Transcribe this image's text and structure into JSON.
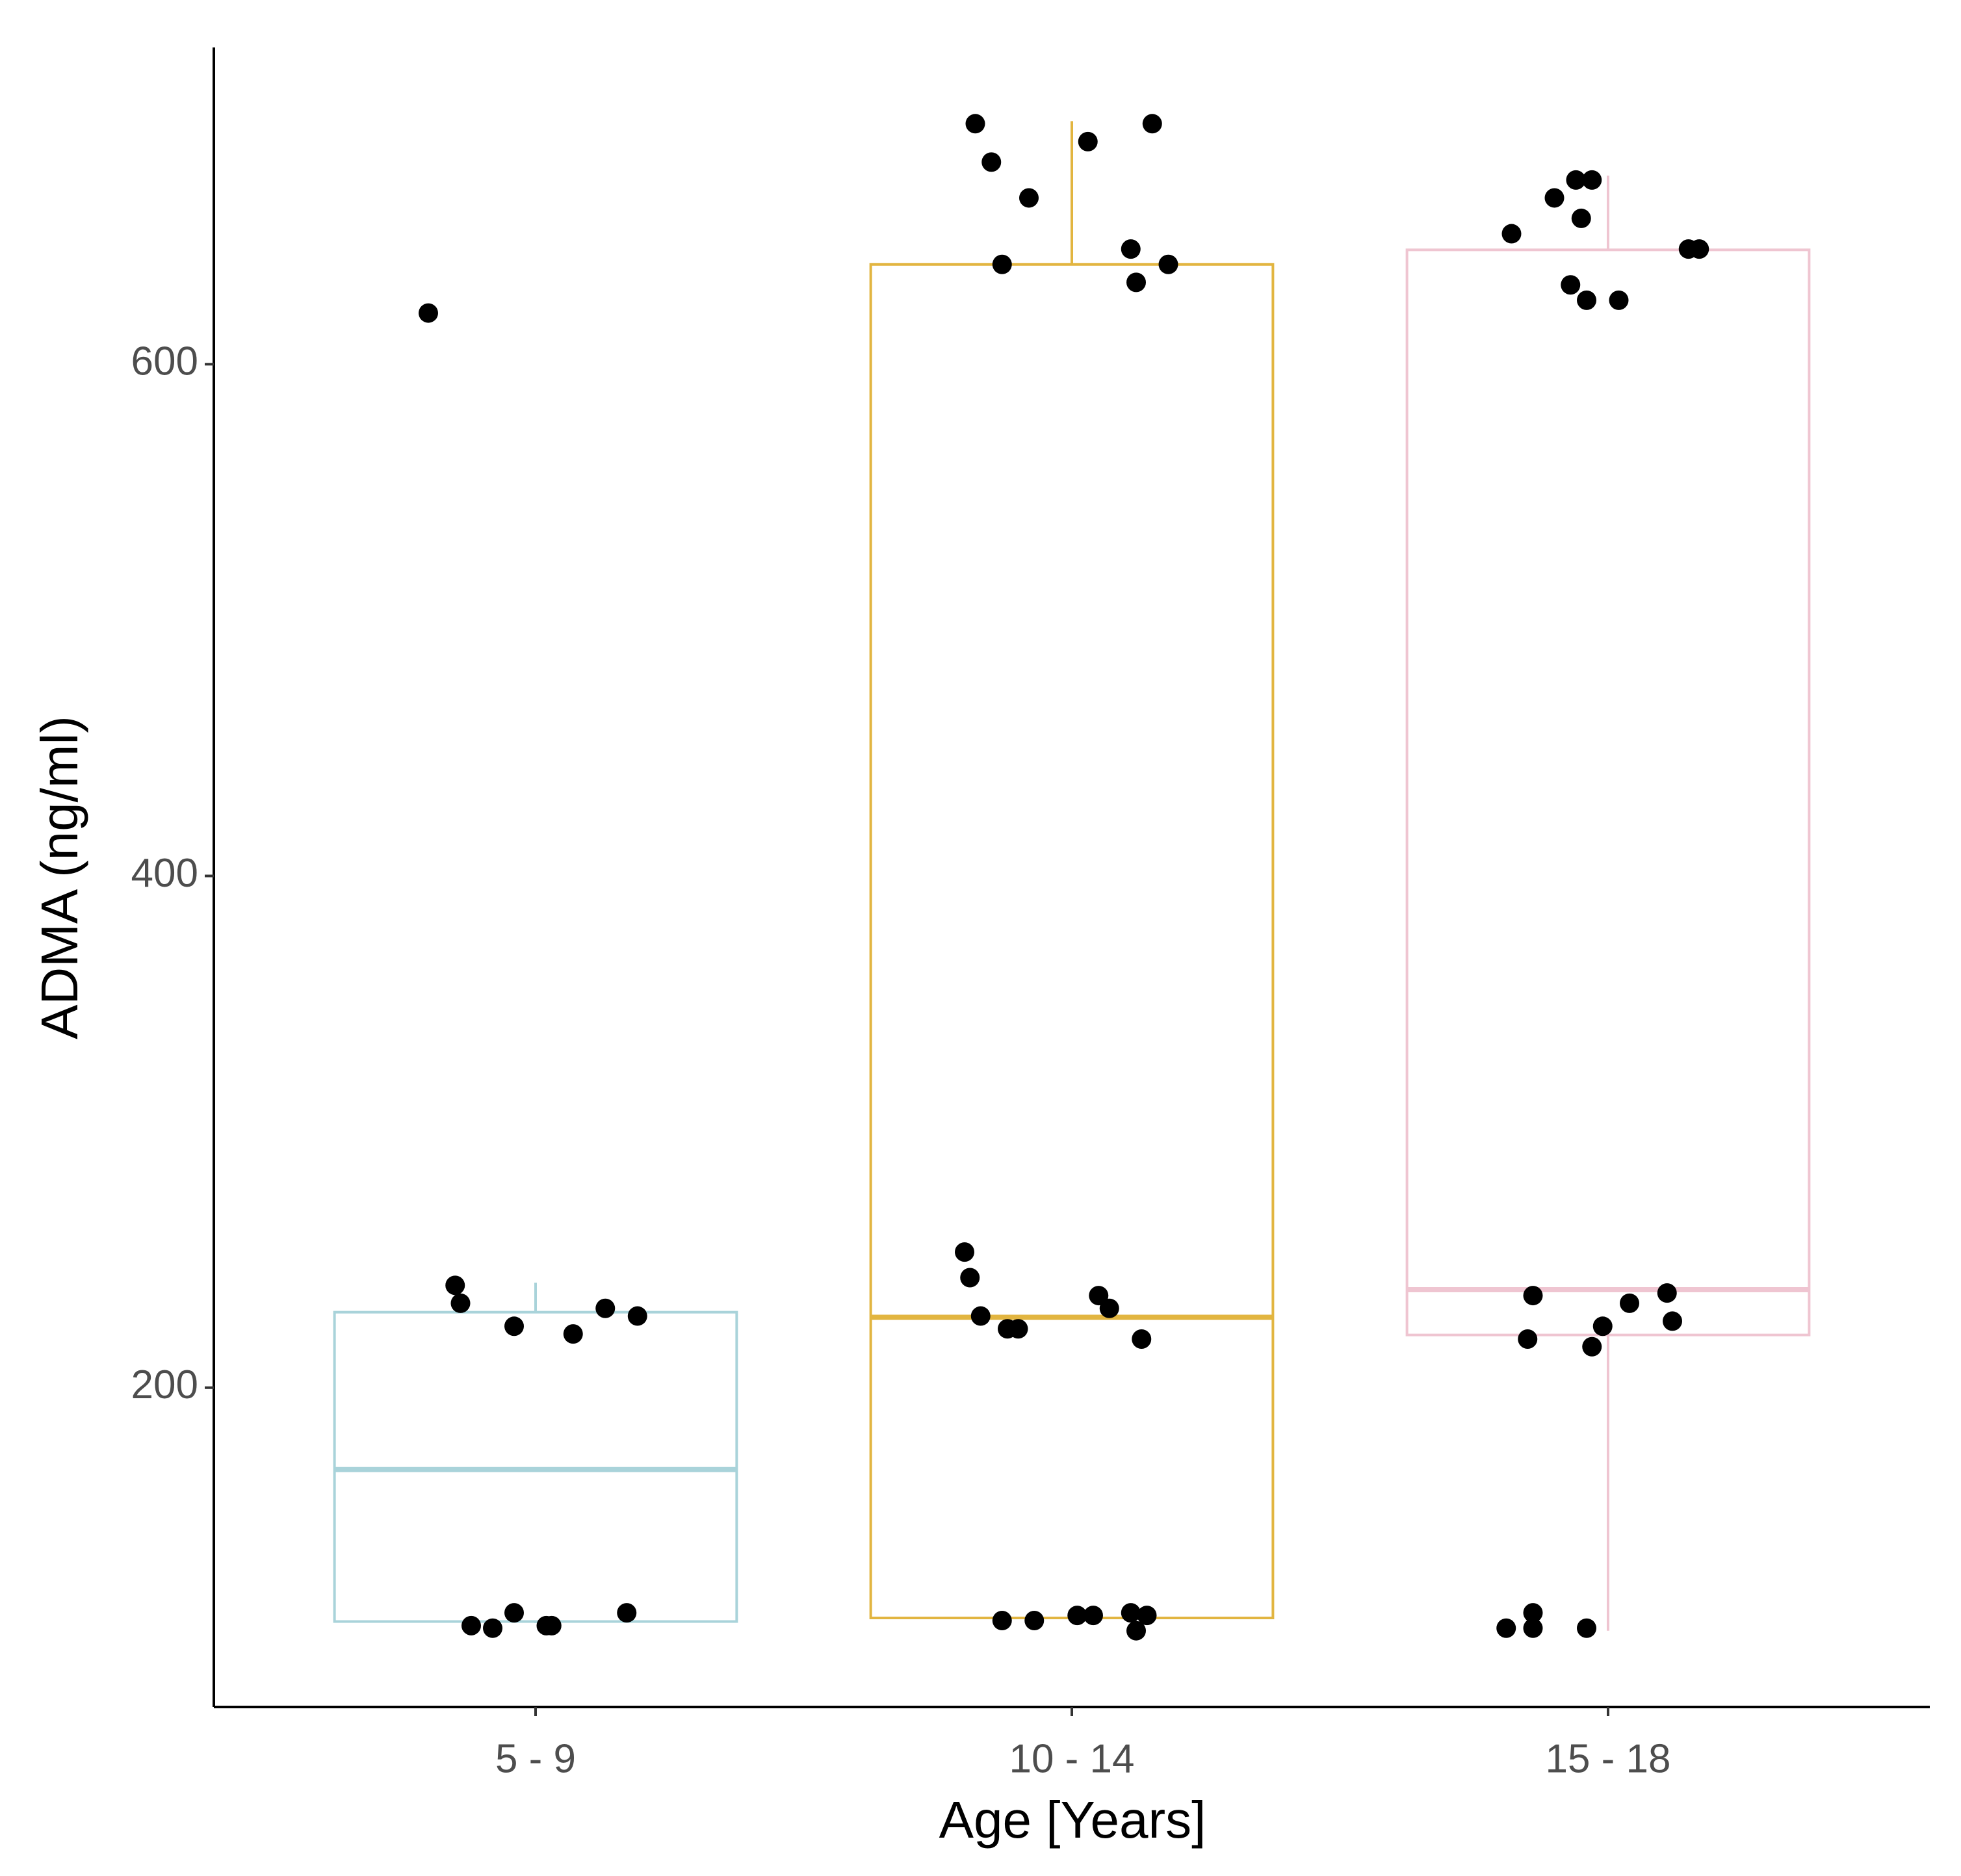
{
  "chart_data": {
    "type": "box",
    "x_label": "Age [Years]",
    "y_label": "ADMA (ng/ml)",
    "categories": [
      "5 - 9",
      "10 - 14",
      "15 - 18"
    ],
    "colors": [
      "#a9d3da",
      "#e2b540",
      "#efc5d1"
    ],
    "boxes": [
      {
        "low": 108,
        "q1": 108.6,
        "median": 168,
        "q3": 229.5,
        "high": 241
      },
      {
        "low": 110,
        "q1": 110,
        "median": 227.5,
        "q3": 639,
        "high": 695
      },
      {
        "low": 105,
        "q1": 220.6,
        "median": 238.3,
        "q3": 644.7,
        "high": 673.7
      }
    ],
    "points": {
      "x": [
        0.8,
        0.85,
        0.86,
        0.96,
        1.07,
        1.13,
        1.19,
        0.88,
        0.92,
        0.96,
        1.02,
        1.03,
        1.17,
        1.82,
        2.15,
        2.03,
        1.85,
        1.92,
        2.11,
        1.87,
        2.18,
        2.12,
        1.8,
        1.81,
        1.83,
        1.88,
        1.9,
        2.05,
        2.07,
        2.13,
        1.87,
        1.93,
        2.01,
        2.04,
        2.11,
        2.14,
        2.12,
        2.82,
        2.9,
        2.94,
        2.97,
        2.95,
        3.15,
        3.17,
        2.93,
        2.96,
        3.02,
        2.86,
        2.85,
        2.99,
        2.97,
        3.04,
        3.11,
        3.12,
        2.81,
        2.86,
        2.86,
        2.96
      ],
      "y": [
        620,
        240,
        233,
        224,
        221,
        231,
        228,
        107,
        106,
        112,
        107,
        107,
        112,
        694,
        694,
        687,
        679,
        665,
        645,
        639,
        639,
        632,
        253,
        243,
        228,
        223,
        223,
        236,
        231,
        219,
        109,
        109,
        111,
        111,
        112,
        111,
        105,
        651,
        665,
        672,
        672,
        657,
        645,
        645,
        631,
        625,
        625,
        236,
        219,
        224,
        216,
        233,
        237,
        226,
        106,
        112,
        106,
        106
      ]
    },
    "xlim": [
      0.4,
      3.6
    ],
    "ylim": [
      75.2,
      723.8
    ],
    "yticks": [
      200,
      400,
      600
    ]
  }
}
